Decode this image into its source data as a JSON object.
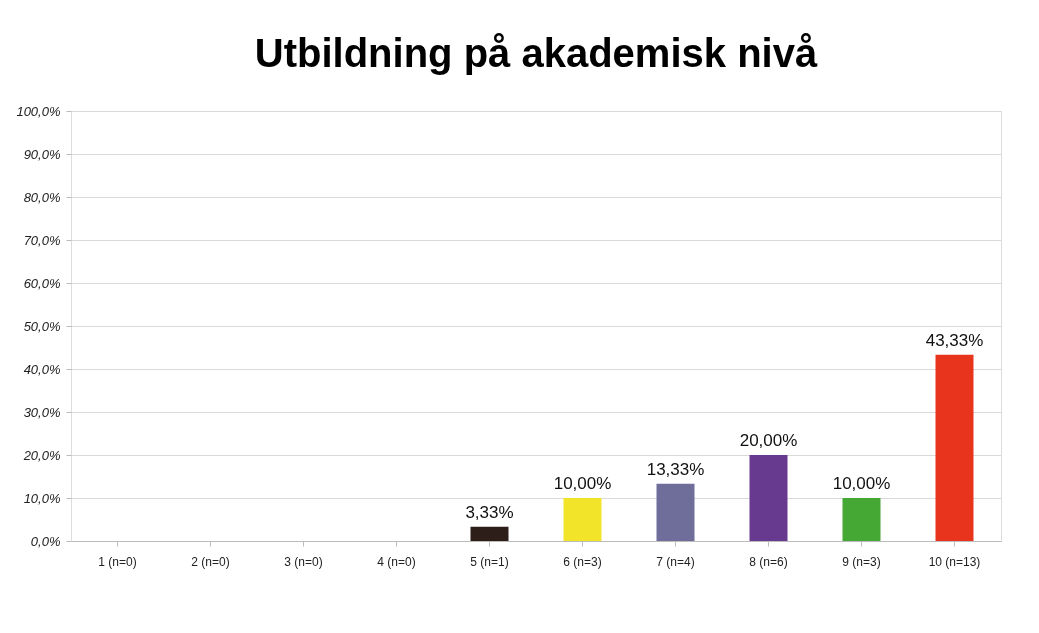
{
  "chart_data": {
    "type": "bar",
    "title": "Utbildning på akademisk nivå",
    "categories": [
      "1 (n=0)",
      "2 (n=0)",
      "3 (n=0)",
      "4 (n=0)",
      "5 (n=1)",
      "6 (n=3)",
      "7 (n=4)",
      "8 (n=6)",
      "9 (n=3)",
      "10 (n=13)"
    ],
    "values": [
      0,
      0,
      0,
      0,
      3.33,
      10.0,
      13.33,
      20.0,
      10.0,
      43.33
    ],
    "colors": [
      "#888888",
      "#888888",
      "#888888",
      "#888888",
      "#2d1e1a",
      "#f2e529",
      "#6f6e9a",
      "#673a8f",
      "#45a834",
      "#e8341c"
    ],
    "value_labels": [
      null,
      null,
      null,
      null,
      "3,33%",
      "10,00%",
      "13,33%",
      "20,00%",
      "10,00%",
      "43,33%"
    ],
    "ylim": [
      0,
      100
    ],
    "yticks": [
      {
        "value": 0,
        "label": "0,0%"
      },
      {
        "value": 10,
        "label": "10,0%"
      },
      {
        "value": 20,
        "label": "20,0%"
      },
      {
        "value": 30,
        "label": "30,0%"
      },
      {
        "value": 40,
        "label": "40,0%"
      },
      {
        "value": 50,
        "label": "50,0%"
      },
      {
        "value": 60,
        "label": "60,0%"
      },
      {
        "value": 70,
        "label": "70,0%"
      },
      {
        "value": 80,
        "label": "80,0%"
      },
      {
        "value": 90,
        "label": "90,0%"
      },
      {
        "value": 100,
        "label": "100,0%"
      }
    ],
    "grid": "y"
  }
}
